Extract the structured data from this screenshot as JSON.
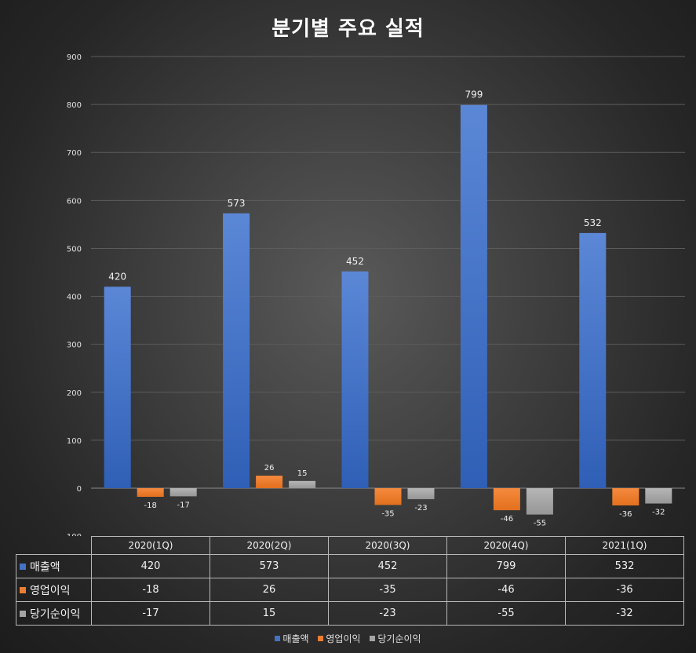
{
  "chart_data": {
    "type": "bar",
    "title": "분기별 주요 실적",
    "categories": [
      "2020(1Q)",
      "2020(2Q)",
      "2020(3Q)",
      "2020(4Q)",
      "2021(1Q)"
    ],
    "series": [
      {
        "name": "매출액",
        "values": [
          420,
          573,
          452,
          799,
          532
        ],
        "color": "#4472c4"
      },
      {
        "name": "영업이익",
        "values": [
          -18,
          26,
          -35,
          -46,
          -36
        ],
        "color": "#ed7d31"
      },
      {
        "name": "당기순이익",
        "values": [
          -17,
          15,
          -23,
          -55,
          -32
        ],
        "color": "#a5a5a5"
      }
    ],
    "ylim": [
      -100,
      900
    ],
    "yticks": [
      -100,
      0,
      100,
      200,
      300,
      400,
      500,
      600,
      700,
      800,
      900
    ],
    "grid": true,
    "legend": "bottom",
    "data_table": true
  }
}
